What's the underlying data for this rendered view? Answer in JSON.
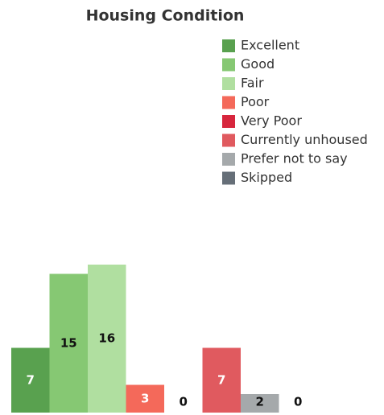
{
  "chart_data": {
    "type": "bar",
    "title": "Housing Condition",
    "categories": [
      "Excellent",
      "Good",
      "Fair",
      "Poor",
      "Very Poor",
      "Currently unhoused",
      "Prefer not to say",
      "Skipped"
    ],
    "values": [
      7,
      15,
      16,
      3,
      0,
      7,
      2,
      0
    ],
    "colors": [
      "#59a14f",
      "#86c873",
      "#b0dfa0",
      "#f4695a",
      "#d7263d",
      "#e05a5f",
      "#a5a9ab",
      "#666f78"
    ],
    "ylim": [
      0,
      16
    ],
    "legend": "top-right"
  }
}
